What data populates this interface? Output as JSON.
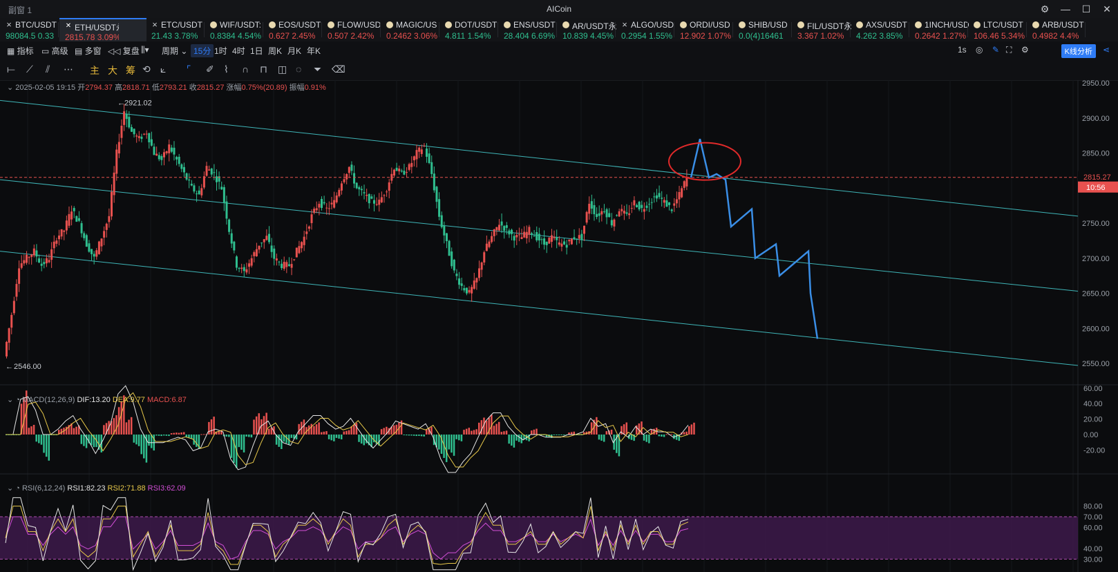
{
  "window": {
    "tab_title": "副窗 1",
    "app_title": "AICoin",
    "controls": [
      "⚙",
      "—",
      "☐",
      "✕"
    ]
  },
  "tickers": [
    {
      "name": "BTC/USDT",
      "price": "98084.5",
      "change": "0.33",
      "dir": "up",
      "icon": "x-icon",
      "active": false
    },
    {
      "name": "ETH/USDT永续",
      "price": "2815.78",
      "change": "3.09%",
      "dir": "dn",
      "icon": "exchange-icon",
      "active": true
    },
    {
      "name": "ETC/USDT",
      "price": "21.43",
      "change": "3.78%",
      "dir": "up",
      "icon": "x-icon",
      "active": false
    },
    {
      "name": "WIF/USDT:",
      "price": "0.8384",
      "change": "4.54%",
      "dir": "up",
      "icon": "coin-icon",
      "active": false
    },
    {
      "name": "EOS/USDT",
      "price": "0.627",
      "change": "2.45%",
      "dir": "dn",
      "icon": "coin-icon",
      "active": false
    },
    {
      "name": "FLOW/USD",
      "price": "0.507",
      "change": "2.42%",
      "dir": "dn",
      "icon": "coin-icon",
      "active": false
    },
    {
      "name": "MAGIC/US",
      "price": "0.2462",
      "change": "3.06%",
      "dir": "dn",
      "icon": "coin-icon",
      "active": false
    },
    {
      "name": "DOT/USDT",
      "price": "4.811",
      "change": "1.54%",
      "dir": "up",
      "icon": "coin-icon",
      "active": false
    },
    {
      "name": "ENS/USDT",
      "price": "28.404",
      "change": "6.69%",
      "dir": "up",
      "icon": "coin-icon",
      "active": false
    },
    {
      "name": "AR/USDT永",
      "price": "10.839",
      "change": "4.45%",
      "dir": "up",
      "icon": "coin-icon",
      "active": false
    },
    {
      "name": "ALGO/USD",
      "price": "0.2954",
      "change": "1.55%",
      "dir": "up",
      "icon": "x-icon",
      "active": false
    },
    {
      "name": "ORDI/USD",
      "price": "12.902",
      "change": "1.07%",
      "dir": "dn",
      "icon": "coin-icon",
      "active": false
    },
    {
      "name": "SHIB/USD",
      "price": "0.0(4)16461",
      "change": "",
      "dir": "up",
      "icon": "coin-icon",
      "active": false
    },
    {
      "name": "FIL/USDT永",
      "price": "3.367",
      "change": "1.02%",
      "dir": "dn",
      "icon": "coin-icon",
      "active": false
    },
    {
      "name": "AXS/USDT",
      "price": "4.262",
      "change": "3.85%",
      "dir": "up",
      "icon": "coin-icon",
      "active": false
    },
    {
      "name": "1INCH/USD",
      "price": "0.2642",
      "change": "1.27%",
      "dir": "dn",
      "icon": "coin-icon",
      "active": false
    },
    {
      "name": "LTC/USDT",
      "price": "106.46",
      "change": "5.34%",
      "dir": "dn",
      "icon": "coin-icon",
      "active": false
    },
    {
      "name": "ARB/USDT",
      "price": "0.4982",
      "change": "4.4%",
      "dir": "dn",
      "icon": "coin-icon",
      "active": false
    }
  ],
  "toolbar": {
    "indicators": "指标",
    "advanced": "高级",
    "multi": "多窗",
    "replay": "复盘",
    "period": "周期",
    "periods": [
      "15分",
      "1时",
      "4时",
      "1日",
      "周K",
      "月K",
      "年K"
    ],
    "selected_period": "15分",
    "right_label": "1s",
    "kline_analysis": "K线分析"
  },
  "drawing_tools": {
    "zhu": "主",
    "da": "大",
    "chou": "筹"
  },
  "ohlc": {
    "date": "2025-02-05 19:15",
    "open_label": "开",
    "open": "2794.37",
    "high_label": "高",
    "high": "2818.71",
    "low_label": "低",
    "low": "2793.21",
    "close_label": "收",
    "close": "2815.27",
    "change_label": "涨幅",
    "change": "0.75%(20.89)",
    "amp_label": "振幅",
    "amp": "0.91%"
  },
  "price_axis": [
    "2950.00",
    "2900.00",
    "2850.00",
    "2800.00",
    "2750.00",
    "2700.00",
    "2650.00",
    "2600.00",
    "2550.00"
  ],
  "price_tag": {
    "price": "2815.27",
    "countdown": "10:56"
  },
  "hi_label": "2921.02",
  "lo_label": "2546.00",
  "macd": {
    "label": "MACD(12,26,9)",
    "dif": "DIF:13.20",
    "dea": "DEA:9.77",
    "macd": "MACD:6.87",
    "axis": [
      "60.00",
      "40.00",
      "20.00",
      "0.00",
      "-20.00"
    ]
  },
  "rsi": {
    "label": "RSI(6,12,24)",
    "rsi1": "RSI1:82.23",
    "rsi2": "RSI2:71.88",
    "rsi3": "RSI3:62.09",
    "axis": [
      "80.00",
      "70.00",
      "60.00",
      "40.00",
      "30.00"
    ]
  },
  "chart_data": {
    "type": "candlestick",
    "symbol": "ETH/USDT永续",
    "interval": "15分",
    "ylim": [
      2530,
      2960
    ],
    "high": 2921.02,
    "low": 2546.0,
    "last": 2815.27,
    "close_path": [
      2560,
      2620,
      2690,
      2700,
      2710,
      2690,
      2700,
      2730,
      2740,
      2770,
      2750,
      2720,
      2700,
      2730,
      2760,
      2850,
      2910,
      2880,
      2870,
      2880,
      2850,
      2840,
      2860,
      2840,
      2820,
      2800,
      2790,
      2830,
      2820,
      2800,
      2740,
      2690,
      2680,
      2700,
      2720,
      2730,
      2700,
      2690,
      2690,
      2710,
      2730,
      2760,
      2780,
      2770,
      2780,
      2810,
      2830,
      2800,
      2790,
      2780,
      2780,
      2800,
      2830,
      2820,
      2830,
      2850,
      2860,
      2820,
      2760,
      2720,
      2680,
      2660,
      2650,
      2670,
      2710,
      2730,
      2750,
      2740,
      2730,
      2730,
      2740,
      2730,
      2720,
      2730,
      2720,
      2720,
      2730,
      2730,
      2780,
      2760,
      2770,
      2750,
      2770,
      2760,
      2780,
      2770,
      2780,
      2790,
      2780,
      2770,
      2790,
      2815
    ],
    "projection_path": [
      2815,
      2870,
      2815,
      2820,
      2812,
      2745,
      2770,
      2700,
      2720,
      2675,
      2710,
      2650,
      2585
    ],
    "channel_lines": [
      [
        2925,
        2760
      ],
      [
        2812,
        2653
      ],
      [
        2710,
        2547
      ]
    ]
  }
}
